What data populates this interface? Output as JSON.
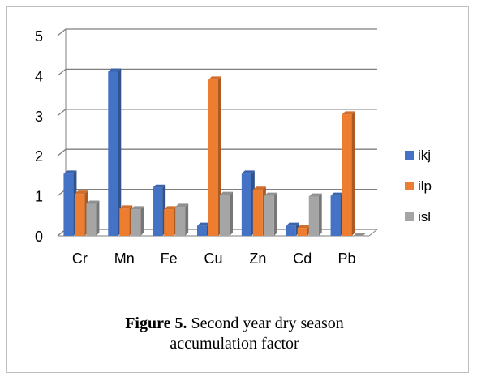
{
  "caption": {
    "label": "Figure 5.",
    "text": " Second year dry season accumulation factor"
  },
  "chart_data": {
    "type": "bar",
    "categories": [
      "Cr",
      "Mn",
      "Fe",
      "Cu",
      "Zn",
      "Cd",
      "Pb"
    ],
    "series": [
      {
        "name": "ikj",
        "color": "#4472c4",
        "values": [
          1.55,
          4.1,
          1.2,
          0.25,
          1.55,
          0.25,
          1.0
        ]
      },
      {
        "name": "ilp",
        "color": "#ed7d31",
        "values": [
          1.05,
          0.68,
          0.66,
          3.9,
          1.15,
          0.2,
          3.03
        ]
      },
      {
        "name": "isl",
        "color": "#a5a5a5",
        "values": [
          0.8,
          0.66,
          0.72,
          1.02,
          1.0,
          0.98,
          0.0
        ]
      }
    ],
    "yticks": [
      0,
      1,
      2,
      3,
      4,
      5
    ],
    "ylim": [
      0,
      5
    ],
    "grid": true,
    "legend": "right"
  }
}
